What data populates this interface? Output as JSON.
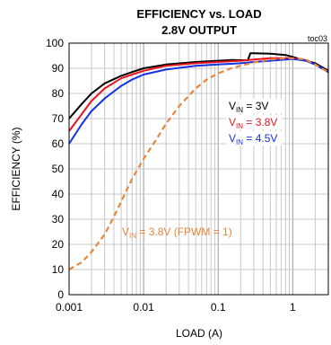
{
  "chart_data": {
    "type": "line",
    "title": "EFFICIENCY vs. LOAD",
    "subtitle": "2.8V OUTPUT",
    "figure_id": "toc03",
    "xlabel": "LOAD (A)",
    "ylabel": "EFFICIENCY (%)",
    "x_scale": "log",
    "xlim": [
      0.001,
      3
    ],
    "ylim": [
      0,
      100
    ],
    "x_ticks": [
      0.001,
      0.01,
      0.1,
      1
    ],
    "x_tick_labels": [
      "0.001",
      "0.01",
      "0.1",
      "1"
    ],
    "y_ticks": [
      0,
      10,
      20,
      30,
      40,
      50,
      60,
      70,
      80,
      90,
      100
    ],
    "y_tick_labels": [
      "0",
      "10",
      "20",
      "30",
      "40",
      "50",
      "60",
      "70",
      "80",
      "90",
      "100"
    ],
    "grid": true,
    "series": [
      {
        "name_parts": [
          "V",
          "IN",
          " = 3V"
        ],
        "color": "#000000",
        "style": "solid",
        "x": [
          0.001,
          0.0015,
          0.002,
          0.003,
          0.005,
          0.007,
          0.01,
          0.02,
          0.05,
          0.1,
          0.15,
          0.2,
          0.25,
          0.27,
          0.3,
          0.5,
          0.8,
          1.0,
          1.5,
          2.0,
          3.0
        ],
        "y": [
          70,
          76,
          80,
          84,
          87,
          88.5,
          90,
          91.5,
          92.5,
          93,
          93.3,
          93.2,
          93.2,
          96,
          96,
          95.8,
          95.3,
          94.5,
          93,
          92,
          89
        ]
      },
      {
        "name_parts": [
          "V",
          "IN",
          " = 3.8V"
        ],
        "color": "#e8141e",
        "style": "solid",
        "x": [
          0.001,
          0.0015,
          0.002,
          0.003,
          0.005,
          0.007,
          0.01,
          0.02,
          0.05,
          0.1,
          0.2,
          0.3,
          0.5,
          0.8,
          1.0,
          1.5,
          2.0,
          3.0
        ],
        "y": [
          65,
          72,
          77,
          82,
          86,
          87.5,
          89,
          91,
          92,
          92.5,
          93,
          93.5,
          94,
          94,
          94,
          93.2,
          91.5,
          88.5
        ]
      },
      {
        "name_parts": [
          "V",
          "IN",
          " = 4.5V"
        ],
        "color": "#1432e6",
        "style": "solid",
        "x": [
          0.001,
          0.0015,
          0.002,
          0.003,
          0.005,
          0.007,
          0.01,
          0.02,
          0.05,
          0.1,
          0.2,
          0.3,
          0.5,
          0.8,
          1.0,
          1.5,
          2.0,
          3.0
        ],
        "y": [
          60,
          68,
          73,
          78,
          83,
          85.5,
          87.5,
          89.5,
          91,
          91.5,
          92,
          92.5,
          93,
          93.5,
          93.7,
          93,
          91.5,
          88.5
        ]
      },
      {
        "name_parts": [
          "V",
          "IN",
          " = 3.8V (FPWM = 1)"
        ],
        "color": "#e8863c",
        "style": "dashed",
        "x": [
          0.001,
          0.0015,
          0.002,
          0.003,
          0.004,
          0.005,
          0.007,
          0.01,
          0.015,
          0.02,
          0.03,
          0.05,
          0.07,
          0.1,
          0.15,
          0.2,
          0.3,
          0.5,
          0.8,
          1.0,
          1.5,
          2.0,
          3.0
        ],
        "y": [
          10,
          13,
          17,
          24,
          31,
          37,
          46,
          54,
          62,
          68,
          75,
          82,
          85.5,
          88,
          90,
          91,
          92.3,
          93.5,
          94,
          94,
          93.5,
          91.5,
          88.5
        ]
      }
    ]
  }
}
